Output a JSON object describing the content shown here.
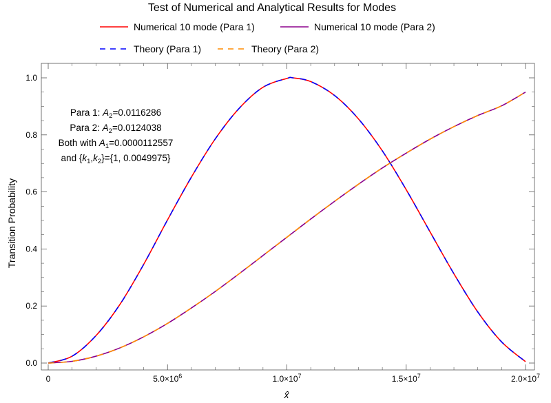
{
  "chart_data": {
    "type": "line",
    "title": "Test of Numerical and Analytical Results for Modes",
    "xlabel": "x̂",
    "ylabel": "Transition Probability",
    "xlim": [
      0,
      20000000
    ],
    "ylim": [
      0,
      1.0
    ],
    "x_ticks": [
      {
        "value": 0,
        "mant": "0",
        "exp": ""
      },
      {
        "value": 5000000,
        "mant": "5.0×10",
        "exp": "6"
      },
      {
        "value": 10000000,
        "mant": "1.0×10",
        "exp": "7"
      },
      {
        "value": 15000000,
        "mant": "1.5×10",
        "exp": "7"
      },
      {
        "value": 20000000,
        "mant": "2.0×10",
        "exp": "7"
      }
    ],
    "y_ticks": [
      "0.0",
      "0.2",
      "0.4",
      "0.6",
      "0.8",
      "1.0"
    ],
    "legend": [
      {
        "label": "Numerical 10 mode (Para 1)",
        "color": "#ff0000",
        "dash": "solid"
      },
      {
        "label": "Numerical 10 mode (Para 2)",
        "color": "#8b008b",
        "dash": "solid"
      },
      {
        "label": "Theory (Para 1)",
        "color": "#0000ff",
        "dash": "dashed"
      },
      {
        "label": "Theory (Para 2)",
        "color": "#ff8c00",
        "dash": "dashed"
      }
    ],
    "annotation": {
      "line1": {
        "a": "Para 1: ",
        "b": "A",
        "c": "2",
        "d": "=0.0116286"
      },
      "line2": {
        "a": "Para 2: ",
        "b": "A",
        "c": "2",
        "d": "=0.0124038"
      },
      "line3": {
        "a": "Both with ",
        "b": "A",
        "c": "1",
        "d": "=0.0000112557"
      },
      "line4": {
        "a": "and {",
        "b": "k",
        "c": "1",
        "d": ",",
        "e": "k",
        "f": "2",
        "g": "}={1, 0.0049975}"
      }
    },
    "series": [
      {
        "name": "Numerical 10 mode (Para 1)",
        "color": "#ff0000",
        "dash": "solid",
        "x": [
          0,
          1000000,
          2000000,
          3000000,
          4000000,
          5000000,
          6000000,
          7000000,
          8000000,
          9000000,
          10000000,
          10250000,
          11000000,
          12000000,
          13000000,
          14000000,
          15000000,
          16000000,
          17000000,
          18000000,
          19000000,
          20000000
        ],
        "y": [
          0,
          0.024,
          0.096,
          0.205,
          0.346,
          0.502,
          0.652,
          0.786,
          0.893,
          0.967,
          0.998,
          1.0,
          0.987,
          0.938,
          0.856,
          0.744,
          0.608,
          0.46,
          0.313,
          0.179,
          0.074,
          0.005
        ]
      },
      {
        "name": "Numerical 10 mode (Para 2)",
        "color": "#8b008b",
        "dash": "solid",
        "x": [
          0,
          1000000,
          2000000,
          3000000,
          4000000,
          5000000,
          6000000,
          7000000,
          8000000,
          9000000,
          10000000,
          11000000,
          12000000,
          13000000,
          14000000,
          15000000,
          16000000,
          17000000,
          18000000,
          19000000,
          20000000
        ],
        "y": [
          0,
          0.006,
          0.024,
          0.053,
          0.092,
          0.139,
          0.193,
          0.251,
          0.313,
          0.377,
          0.441,
          0.505,
          0.567,
          0.627,
          0.684,
          0.736,
          0.785,
          0.829,
          0.868,
          0.902,
          0.95
        ]
      },
      {
        "name": "Theory (Para 1)",
        "color": "#0000ff",
        "dash": "dashed",
        "x": [
          0,
          1000000,
          2000000,
          3000000,
          4000000,
          5000000,
          6000000,
          7000000,
          8000000,
          9000000,
          10000000,
          10250000,
          11000000,
          12000000,
          13000000,
          14000000,
          15000000,
          16000000,
          17000000,
          18000000,
          19000000,
          20000000
        ],
        "y": [
          0,
          0.024,
          0.096,
          0.205,
          0.346,
          0.502,
          0.652,
          0.786,
          0.893,
          0.967,
          0.998,
          1.0,
          0.987,
          0.938,
          0.856,
          0.744,
          0.608,
          0.46,
          0.313,
          0.179,
          0.074,
          0.005
        ]
      },
      {
        "name": "Theory (Para 2)",
        "color": "#ff8c00",
        "dash": "dashed",
        "x": [
          0,
          1000000,
          2000000,
          3000000,
          4000000,
          5000000,
          6000000,
          7000000,
          8000000,
          9000000,
          10000000,
          11000000,
          12000000,
          13000000,
          14000000,
          15000000,
          16000000,
          17000000,
          18000000,
          19000000,
          20000000
        ],
        "y": [
          0,
          0.006,
          0.024,
          0.053,
          0.092,
          0.139,
          0.193,
          0.251,
          0.313,
          0.377,
          0.441,
          0.505,
          0.567,
          0.627,
          0.684,
          0.736,
          0.785,
          0.829,
          0.868,
          0.902,
          0.95
        ]
      }
    ]
  }
}
